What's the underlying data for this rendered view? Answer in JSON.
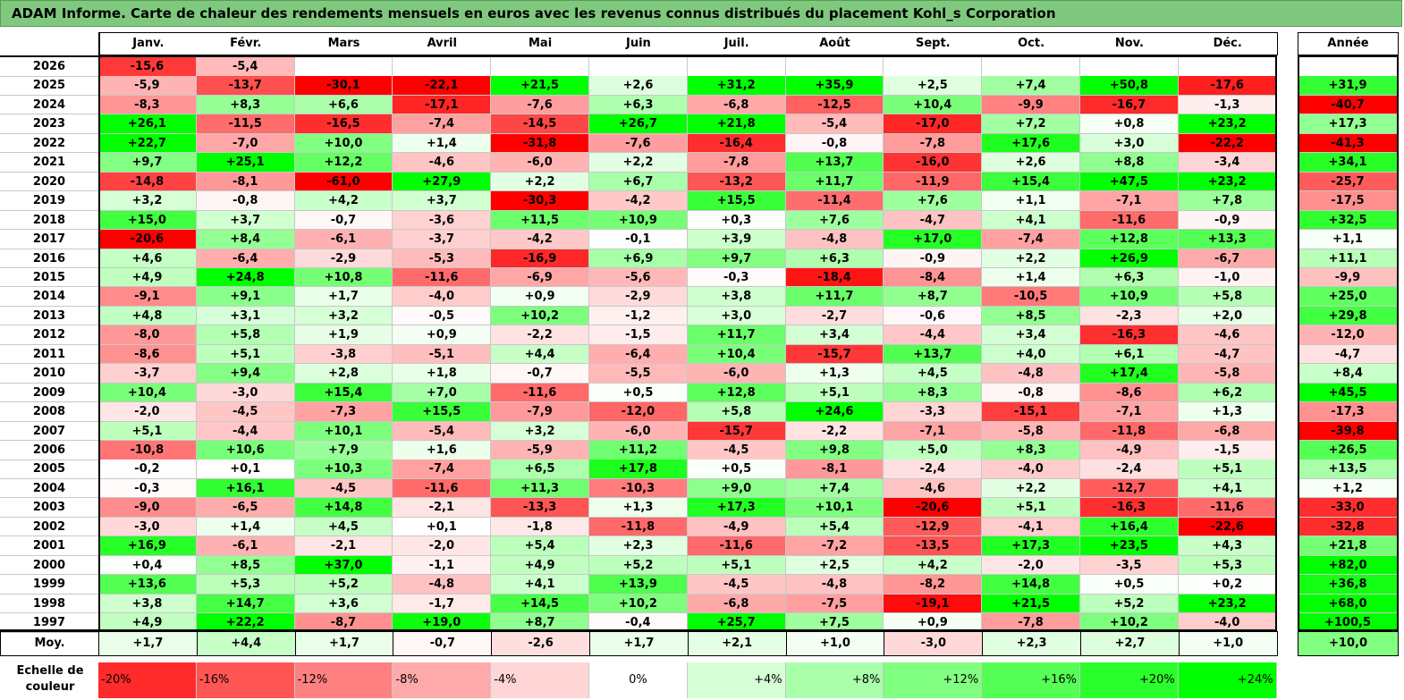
{
  "title": "ADAM Informe. Carte de chaleur des rendements mensuels en euros avec les revenus connus distribués du placement Kohl_s Corporation",
  "chart_data": {
    "type": "heatmap",
    "columns": [
      "Janv.",
      "Févr.",
      "Mars",
      "Avril",
      "Mai",
      "Juin",
      "Juil.",
      "Août",
      "Sept.",
      "Oct.",
      "Nov.",
      "Déc."
    ],
    "year_column": "Année",
    "rows": [
      {
        "year": "2026",
        "months": [
          "-15,6",
          "-5,4",
          "",
          "",
          "",
          "",
          "",
          "",
          "",
          "",
          "",
          ""
        ],
        "annual": ""
      },
      {
        "year": "2025",
        "months": [
          "-5,9",
          "-13,7",
          "-30,1",
          "-22,1",
          "+21,5",
          "+2,6",
          "+31,2",
          "+35,9",
          "+2,5",
          "+7,4",
          "+50,8",
          "-17,6"
        ],
        "annual": "+31,9"
      },
      {
        "year": "2024",
        "months": [
          "-8,3",
          "+8,3",
          "+6,6",
          "-17,1",
          "-7,6",
          "+6,3",
          "-6,8",
          "-12,5",
          "+10,4",
          "-9,9",
          "-16,7",
          "-1,3"
        ],
        "annual": "-40,7"
      },
      {
        "year": "2023",
        "months": [
          "+26,1",
          "-11,5",
          "-16,5",
          "-7,4",
          "-14,5",
          "+26,7",
          "+21,8",
          "-5,4",
          "-17,0",
          "+7,2",
          "+0,8",
          "+23,2"
        ],
        "annual": "+17,3"
      },
      {
        "year": "2022",
        "months": [
          "+22,7",
          "-7,0",
          "+10,0",
          "+1,4",
          "-31,8",
          "-7,6",
          "-16,4",
          "-0,8",
          "-7,8",
          "+17,6",
          "+3,0",
          "-22,2"
        ],
        "annual": "-41,3"
      },
      {
        "year": "2021",
        "months": [
          "+9,7",
          "+25,1",
          "+12,2",
          "-4,6",
          "-6,0",
          "+2,2",
          "-7,8",
          "+13,7",
          "-16,0",
          "+2,6",
          "+8,8",
          "-3,4"
        ],
        "annual": "+34,1"
      },
      {
        "year": "2020",
        "months": [
          "-14,8",
          "-8,1",
          "-61,0",
          "+27,9",
          "+2,2",
          "+6,7",
          "-13,2",
          "+11,7",
          "-11,9",
          "+15,4",
          "+47,5",
          "+23,2"
        ],
        "annual": "-25,7"
      },
      {
        "year": "2019",
        "months": [
          "+3,2",
          "-0,8",
          "+4,2",
          "+3,7",
          "-30,3",
          "-4,2",
          "+15,5",
          "-11,4",
          "+7,6",
          "+1,1",
          "-7,1",
          "+7,8"
        ],
        "annual": "-17,5"
      },
      {
        "year": "2018",
        "months": [
          "+15,0",
          "+3,7",
          "-0,7",
          "-3,6",
          "+11,5",
          "+10,9",
          "+0,3",
          "+7,6",
          "-4,7",
          "+4,1",
          "-11,6",
          "-0,9"
        ],
        "annual": "+32,5"
      },
      {
        "year": "2017",
        "months": [
          "-20,6",
          "+8,4",
          "-6,1",
          "-3,7",
          "-4,2",
          "-0,1",
          "+3,9",
          "-4,8",
          "+17,0",
          "-7,4",
          "+12,8",
          "+13,3"
        ],
        "annual": "+1,1"
      },
      {
        "year": "2016",
        "months": [
          "+4,6",
          "-6,4",
          "-2,9",
          "-5,3",
          "-16,9",
          "+6,9",
          "+9,7",
          "+6,3",
          "-0,9",
          "+2,2",
          "+26,9",
          "-6,7"
        ],
        "annual": "+11,1"
      },
      {
        "year": "2015",
        "months": [
          "+4,9",
          "+24,8",
          "+10,8",
          "-11,6",
          "-6,9",
          "-5,6",
          "-0,3",
          "-18,4",
          "-8,4",
          "+1,4",
          "+6,3",
          "-1,0"
        ],
        "annual": "-9,9"
      },
      {
        "year": "2014",
        "months": [
          "-9,1",
          "+9,1",
          "+1,7",
          "-4,0",
          "+0,9",
          "-2,9",
          "+3,8",
          "+11,7",
          "+8,7",
          "-10,5",
          "+10,9",
          "+5,8"
        ],
        "annual": "+25,0"
      },
      {
        "year": "2013",
        "months": [
          "+4,8",
          "+3,1",
          "+3,2",
          "-0,5",
          "+10,2",
          "-1,2",
          "+3,0",
          "-2,7",
          "-0,6",
          "+8,5",
          "-2,3",
          "+2,0"
        ],
        "annual": "+29,8"
      },
      {
        "year": "2012",
        "months": [
          "-8,0",
          "+5,8",
          "+1,9",
          "+0,9",
          "-2,2",
          "-1,5",
          "+11,7",
          "+3,4",
          "-4,4",
          "+3,4",
          "-16,3",
          "-4,6"
        ],
        "annual": "-12,0"
      },
      {
        "year": "2011",
        "months": [
          "-8,6",
          "+5,1",
          "-3,8",
          "-5,1",
          "+4,4",
          "-6,4",
          "+10,4",
          "-15,7",
          "+13,7",
          "+4,0",
          "+6,1",
          "-4,7"
        ],
        "annual": "-4,7"
      },
      {
        "year": "2010",
        "months": [
          "-3,7",
          "+9,4",
          "+2,8",
          "+1,8",
          "-0,7",
          "-5,5",
          "-6,0",
          "+1,3",
          "+4,5",
          "-4,8",
          "+17,4",
          "-5,8"
        ],
        "annual": "+8,4"
      },
      {
        "year": "2009",
        "months": [
          "+10,4",
          "-3,0",
          "+15,4",
          "+7,0",
          "-11,6",
          "+0,5",
          "+12,8",
          "+5,1",
          "+8,3",
          "-0,8",
          "-8,6",
          "+6,2"
        ],
        "annual": "+45,5"
      },
      {
        "year": "2008",
        "months": [
          "-2,0",
          "-4,5",
          "-7,3",
          "+15,5",
          "-7,9",
          "-12,0",
          "+5,8",
          "+24,6",
          "-3,3",
          "-15,1",
          "-7,1",
          "+1,3"
        ],
        "annual": "-17,3"
      },
      {
        "year": "2007",
        "months": [
          "+5,1",
          "-4,4",
          "+10,1",
          "-5,4",
          "+3,2",
          "-6,0",
          "-15,7",
          "-2,2",
          "-7,1",
          "-5,8",
          "-11,8",
          "-6,8"
        ],
        "annual": "-39,8"
      },
      {
        "year": "2006",
        "months": [
          "-10,8",
          "+10,6",
          "+7,9",
          "+1,6",
          "-5,9",
          "+11,2",
          "-4,5",
          "+9,8",
          "+5,0",
          "+8,3",
          "-4,9",
          "-1,5"
        ],
        "annual": "+26,5"
      },
      {
        "year": "2005",
        "months": [
          "-0,2",
          "+0,1",
          "+10,3",
          "-7,4",
          "+6,5",
          "+17,8",
          "+0,5",
          "-8,1",
          "-2,4",
          "-4,0",
          "-2,4",
          "+5,1"
        ],
        "annual": "+13,5"
      },
      {
        "year": "2004",
        "months": [
          "-0,3",
          "+16,1",
          "-4,5",
          "-11,6",
          "+11,3",
          "-10,3",
          "+9,0",
          "+7,4",
          "-4,6",
          "+2,2",
          "-12,7",
          "+4,1"
        ],
        "annual": "+1,2"
      },
      {
        "year": "2003",
        "months": [
          "-9,0",
          "-6,5",
          "+14,8",
          "-2,1",
          "-13,3",
          "+1,3",
          "+17,3",
          "+10,1",
          "-20,6",
          "+5,1",
          "-16,3",
          "-11,6"
        ],
        "annual": "-33,0"
      },
      {
        "year": "2002",
        "months": [
          "-3,0",
          "+1,4",
          "+4,5",
          "+0,1",
          "-1,8",
          "-11,8",
          "-4,9",
          "+5,4",
          "-12,9",
          "-4,1",
          "+16,4",
          "-22,6"
        ],
        "annual": "-32,8"
      },
      {
        "year": "2001",
        "months": [
          "+16,9",
          "-6,1",
          "-2,1",
          "-2,0",
          "+5,4",
          "+2,3",
          "-11,6",
          "-7,2",
          "-13,5",
          "+17,3",
          "+23,5",
          "+4,3"
        ],
        "annual": "+21,8"
      },
      {
        "year": "2000",
        "months": [
          "+0,4",
          "+8,5",
          "+37,0",
          "-1,1",
          "+4,9",
          "+5,2",
          "+5,1",
          "+2,5",
          "+4,2",
          "-2,0",
          "-3,5",
          "+5,3"
        ],
        "annual": "+82,0"
      },
      {
        "year": "1999",
        "months": [
          "+13,6",
          "+5,3",
          "+5,2",
          "-4,8",
          "+4,1",
          "+13,9",
          "-4,5",
          "-4,8",
          "-8,2",
          "+14,8",
          "+0,5",
          "+0,2"
        ],
        "annual": "+36,8"
      },
      {
        "year": "1998",
        "months": [
          "+3,8",
          "+14,7",
          "+3,6",
          "-1,7",
          "+14,5",
          "+10,2",
          "-6,8",
          "-7,5",
          "-19,1",
          "+21,5",
          "+5,2",
          "+23,2"
        ],
        "annual": "+68,0"
      },
      {
        "year": "1997",
        "months": [
          "+4,9",
          "+22,2",
          "-8,7",
          "+19,0",
          "+8,7",
          "-0,4",
          "+25,7",
          "+7,5",
          "+0,9",
          "-7,8",
          "+10,2",
          "-4,0"
        ],
        "annual": "+100,5"
      }
    ],
    "average": {
      "label": "Moy.",
      "months": [
        "+1,7",
        "+4,4",
        "+1,7",
        "-0,7",
        "-2,6",
        "+1,7",
        "+2,1",
        "+1,0",
        "-3,0",
        "+2,3",
        "+2,7",
        "+1,0"
      ],
      "annual": "+10,0"
    },
    "scale": {
      "label": "Echelle de couleur",
      "steps": [
        "-20%",
        "-16%",
        "-12%",
        "-8%",
        "-4%",
        "0%",
        "+4%",
        "+8%",
        "+12%",
        "+16%",
        "+20%",
        "+24%"
      ]
    },
    "colors": {
      "negative_max": "#ff0000",
      "neutral": "#ffffff",
      "positive_max": "#00ff00",
      "title_bg": "#7fc97f"
    }
  }
}
